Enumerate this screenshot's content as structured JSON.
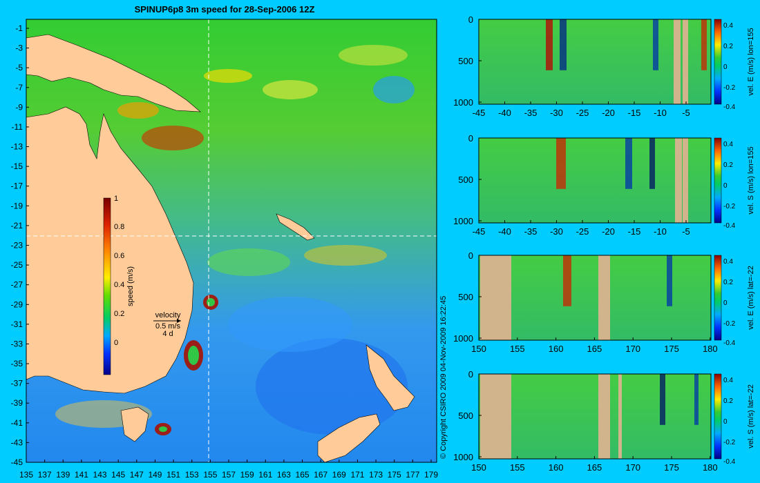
{
  "main_title": "SPINUP6p8 3m speed for 28-Sep-2006 12Z",
  "map": {
    "lat_ticks": [
      "-1",
      "-3",
      "-5",
      "-7",
      "-9",
      "-11",
      "-13",
      "-15",
      "-17",
      "-19",
      "-21",
      "-23",
      "-25",
      "-27",
      "-29",
      "-31",
      "-33",
      "-35",
      "-37",
      "-39",
      "-41",
      "-43",
      "-45"
    ],
    "lon_ticks": [
      "135",
      "137",
      "139",
      "141",
      "143",
      "145",
      "147",
      "149",
      "151",
      "153",
      "155",
      "157",
      "159",
      "161",
      "163",
      "165",
      "167",
      "169",
      "171",
      "173",
      "175",
      "177",
      "179"
    ],
    "colorbar": {
      "label": "speed (m/s)",
      "ticks": [
        "1",
        "0.8",
        "0.6",
        "0.4",
        "0.2",
        "0"
      ]
    },
    "velocity_key": {
      "title": "velocity",
      "speed": "0.5 m/s",
      "duration": "4 d"
    },
    "copyright": "© Copyright CSIRO 2009  04-Nov-2009 16:22:45"
  },
  "sections": [
    {
      "colorbar_label": "vel. E (m/s) lon=155",
      "x_ticks": [
        "-45",
        "-40",
        "-35",
        "-30",
        "-25",
        "-20",
        "-15",
        "-10",
        "-5"
      ],
      "y_ticks": [
        "0",
        "500",
        "1000"
      ],
      "cbar_ticks": [
        "0.4",
        "0.2",
        "0",
        "-0.2",
        "-0.4"
      ]
    },
    {
      "colorbar_label": "vel. S (m/s) lon=155",
      "x_ticks": [
        "-45",
        "-40",
        "-35",
        "-30",
        "-25",
        "-20",
        "-15",
        "-10",
        "-5"
      ],
      "y_ticks": [
        "0",
        "500",
        "1000"
      ],
      "cbar_ticks": [
        "0.4",
        "0.2",
        "0",
        "-0.2",
        "-0.4"
      ]
    },
    {
      "colorbar_label": "vel. E (m/s) lat=-22",
      "x_ticks": [
        "150",
        "155",
        "160",
        "165",
        "170",
        "175",
        "180"
      ],
      "y_ticks": [
        "0",
        "500",
        "1000"
      ],
      "cbar_ticks": [
        "0.4",
        "0.2",
        "0",
        "-0.2",
        "-0.4"
      ]
    },
    {
      "colorbar_label": "vel. S (m/s) lat=-22",
      "x_ticks": [
        "150",
        "155",
        "160",
        "165",
        "170",
        "175",
        "180"
      ],
      "y_ticks": [
        "0",
        "500",
        "1000"
      ],
      "cbar_ticks": [
        "0.4",
        "0.2",
        "0",
        "-0.2",
        "-0.4"
      ]
    }
  ],
  "colors": {
    "background": "#00ccff",
    "land": "#ffcc99",
    "section_land": "#d2b48c"
  }
}
